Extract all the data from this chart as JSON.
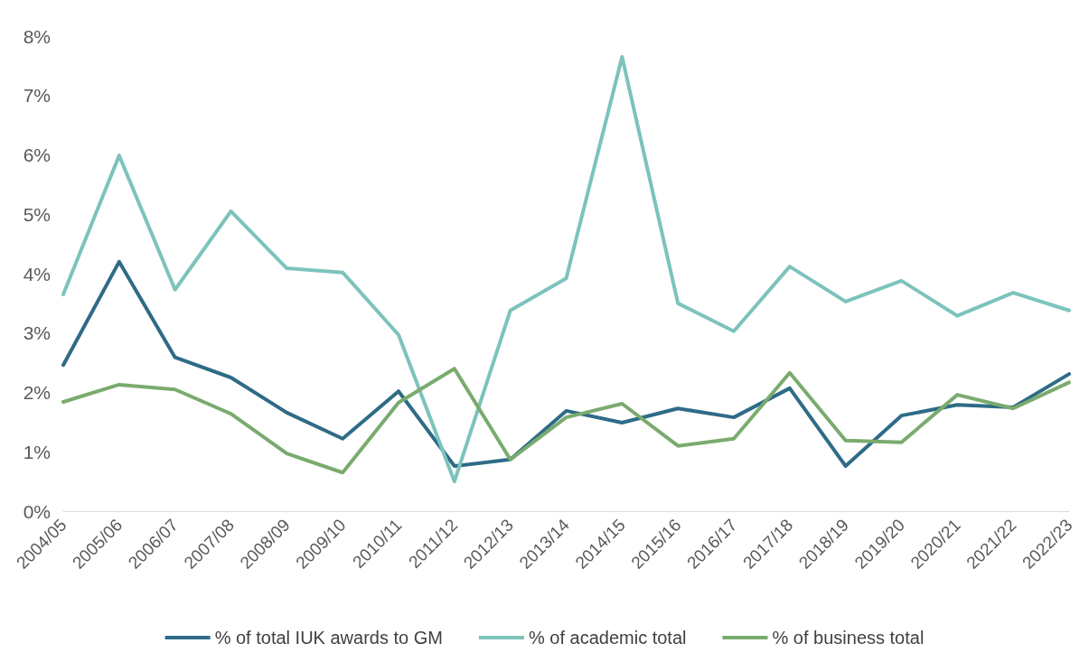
{
  "chart_data": {
    "type": "line",
    "categories": [
      "2004/05",
      "2005/06",
      "2006/07",
      "2007/08",
      "2008/09",
      "2009/10",
      "2010/11",
      "2011/12",
      "2012/13",
      "2013/14",
      "2014/15",
      "2015/16",
      "2016/17",
      "2017/18",
      "2018/19",
      "2019/20",
      "2020/21",
      "2021/22",
      "2022/23"
    ],
    "series": [
      {
        "name": "% of total IUK awards to GM",
        "color": "#2e6b87",
        "values": [
          2.46,
          4.2,
          2.59,
          2.25,
          1.66,
          1.22,
          2.02,
          0.76,
          0.87,
          1.69,
          1.49,
          1.73,
          1.58,
          2.07,
          0.76,
          1.61,
          1.79,
          1.75,
          2.31
        ]
      },
      {
        "name": "% of academic total",
        "color": "#7cc3bc",
        "values": [
          3.65,
          5.99,
          3.73,
          5.05,
          4.09,
          4.02,
          2.97,
          0.5,
          3.38,
          3.92,
          7.65,
          3.5,
          3.03,
          4.12,
          3.53,
          3.88,
          3.29,
          3.68,
          3.38
        ]
      },
      {
        "name": "% of business total",
        "color": "#7aab6e",
        "values": [
          1.84,
          2.13,
          2.05,
          1.64,
          0.97,
          0.65,
          1.83,
          2.4,
          0.87,
          1.58,
          1.81,
          1.1,
          1.22,
          2.33,
          1.19,
          1.16,
          1.96,
          1.73,
          2.17
        ]
      }
    ],
    "ylim": [
      0,
      8
    ],
    "yticks": [
      {
        "value": 0,
        "label": "0%"
      },
      {
        "value": 1,
        "label": "1%"
      },
      {
        "value": 2,
        "label": "2%"
      },
      {
        "value": 3,
        "label": "3%"
      },
      {
        "value": 4,
        "label": "4%"
      },
      {
        "value": 5,
        "label": "5%"
      },
      {
        "value": 6,
        "label": "6%"
      },
      {
        "value": 7,
        "label": "7%"
      },
      {
        "value": 8,
        "label": "8%"
      }
    ],
    "grid": false,
    "legend": "bottom",
    "marker": "none",
    "line_style": "solid"
  }
}
